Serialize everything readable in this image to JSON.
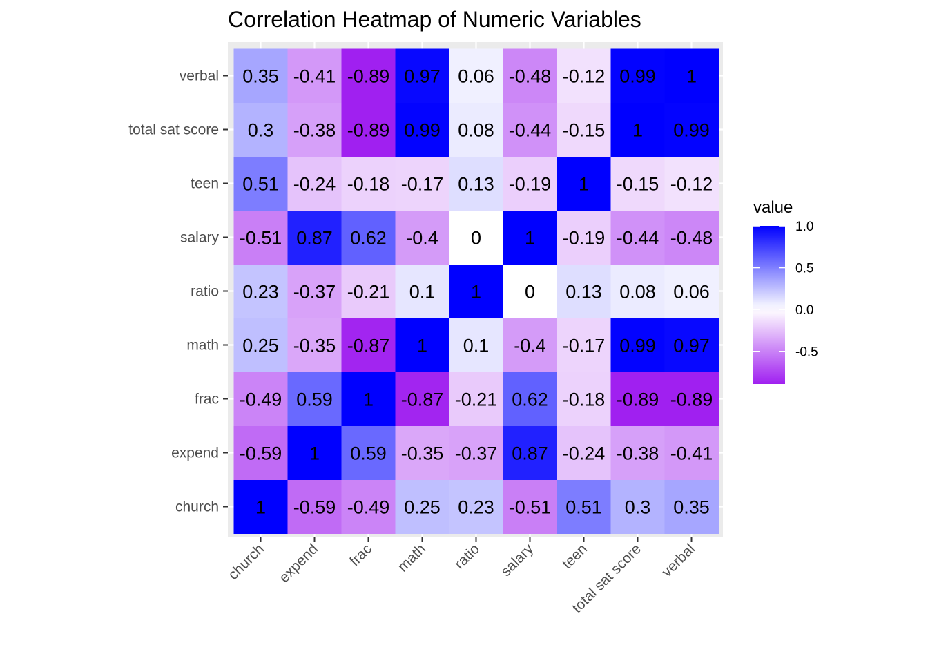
{
  "chart_data": {
    "type": "heatmap",
    "title": "Correlation Heatmap of Numeric Variables",
    "xlabel": "",
    "ylabel": "",
    "x_categories": [
      "church",
      "expend",
      "frac",
      "math",
      "ratio",
      "salary",
      "teen",
      "total sat score",
      "verbal"
    ],
    "y_categories": [
      "church",
      "expend",
      "frac",
      "math",
      "ratio",
      "salary",
      "teen",
      "total sat score",
      "verbal"
    ],
    "values": [
      [
        1,
        -0.59,
        -0.49,
        0.25,
        0.23,
        -0.51,
        0.51,
        0.3,
        0.35
      ],
      [
        -0.59,
        1,
        0.59,
        -0.35,
        -0.37,
        0.87,
        -0.24,
        -0.38,
        -0.41
      ],
      [
        -0.49,
        0.59,
        1,
        -0.87,
        -0.21,
        0.62,
        -0.18,
        -0.89,
        -0.89
      ],
      [
        0.25,
        -0.35,
        -0.87,
        1,
        0.1,
        -0.4,
        -0.17,
        0.99,
        0.97
      ],
      [
        0.23,
        -0.37,
        -0.21,
        0.1,
        1,
        0,
        0.13,
        0.08,
        0.06
      ],
      [
        -0.51,
        0.87,
        0.62,
        -0.4,
        0,
        1,
        -0.19,
        -0.44,
        -0.48
      ],
      [
        0.51,
        -0.24,
        -0.18,
        -0.17,
        0.13,
        -0.19,
        1,
        -0.15,
        -0.12
      ],
      [
        0.3,
        -0.38,
        -0.89,
        0.99,
        0.08,
        -0.44,
        -0.15,
        1,
        0.99
      ],
      [
        0.35,
        -0.41,
        -0.89,
        0.97,
        0.06,
        -0.48,
        -0.12,
        0.99,
        1
      ]
    ],
    "cell_labels": [
      [
        "1",
        "-0.59",
        "-0.49",
        "0.25",
        "0.23",
        "-0.51",
        "0.51",
        "0.3",
        "0.35"
      ],
      [
        "-0.59",
        "1",
        "0.59",
        "-0.35",
        "-0.37",
        "0.87",
        "-0.24",
        "-0.38",
        "-0.41"
      ],
      [
        "-0.49",
        "0.59",
        "1",
        "-0.87",
        "-0.21",
        "0.62",
        "-0.18",
        "-0.89",
        "-0.89"
      ],
      [
        "0.25",
        "-0.35",
        "-0.87",
        "1",
        "0.1",
        "-0.4",
        "-0.17",
        "0.99",
        "0.97"
      ],
      [
        "0.23",
        "-0.37",
        "-0.21",
        "0.1",
        "1",
        "0",
        "0.13",
        "0.08",
        "0.06"
      ],
      [
        "-0.51",
        "0.87",
        "0.62",
        "-0.4",
        "0",
        "1",
        "-0.19",
        "-0.44",
        "-0.48"
      ],
      [
        "0.51",
        "-0.24",
        "-0.18",
        "-0.17",
        "0.13",
        "-0.19",
        "1",
        "-0.15",
        "-0.12"
      ],
      [
        "0.3",
        "-0.38",
        "-0.89",
        "0.99",
        "0.08",
        "-0.44",
        "-0.15",
        "1",
        "0.99"
      ],
      [
        "0.35",
        "-0.41",
        "-0.89",
        "0.97",
        "0.06",
        "-0.48",
        "-0.12",
        "0.99",
        "1"
      ]
    ],
    "legend": {
      "title": "value",
      "position": "right",
      "ticks": [
        1.0,
        0.5,
        0.0,
        -0.5
      ],
      "tick_labels": [
        "1.0",
        "0.5",
        "0.0",
        "-0.5"
      ],
      "range": [
        -0.89,
        1.0
      ]
    },
    "color_scale": {
      "low": "#a020f0",
      "mid": "#ffffff",
      "high": "#0000ff",
      "midpoint": 0
    },
    "panel_background": "#ebebeb",
    "grid": true
  }
}
